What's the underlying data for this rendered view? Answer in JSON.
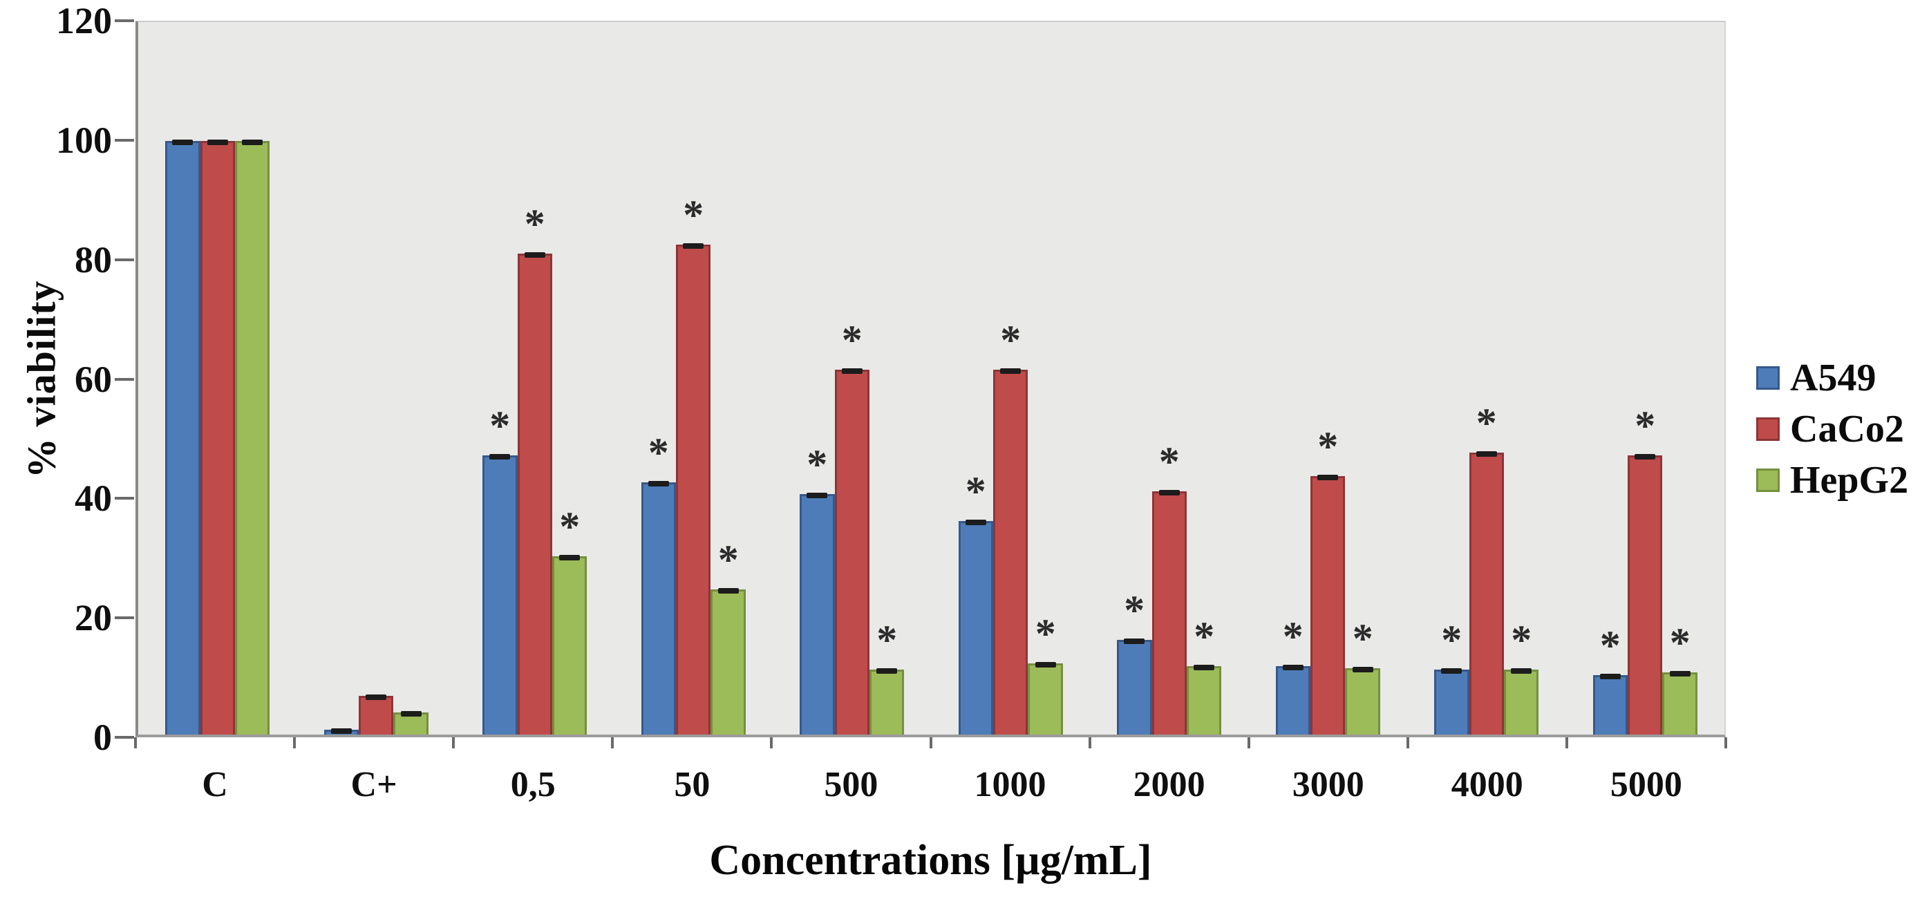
{
  "chart_data": {
    "type": "bar",
    "title": "",
    "xlabel": "Concentrations [µg/mL]",
    "ylabel": "% viability",
    "categories": [
      "C",
      "C+",
      "0,5",
      "50",
      "500",
      "1000",
      "2000",
      "3000",
      "4000",
      "5000"
    ],
    "series": [
      {
        "name": "A549",
        "color": "#4E7CB8",
        "border_color": "#36598C",
        "values": [
          100,
          0.8,
          47,
          42.5,
          40.5,
          36,
          16,
          11.5,
          11,
          10
        ],
        "significant": [
          false,
          false,
          true,
          true,
          true,
          true,
          true,
          true,
          true,
          true
        ]
      },
      {
        "name": "CaCo2",
        "color": "#C04B4B",
        "border_color": "#8E3537",
        "values": [
          100,
          6.5,
          81,
          82.5,
          61.5,
          61.5,
          41,
          43.5,
          47.5,
          47
        ],
        "significant": [
          false,
          false,
          true,
          true,
          true,
          true,
          true,
          true,
          true,
          true
        ]
      },
      {
        "name": "HepG2",
        "color": "#9CBB59",
        "border_color": "#75903F",
        "values": [
          100,
          3.7,
          30,
          24.5,
          11,
          12,
          11.5,
          11.2,
          11,
          10.5
        ],
        "significant": [
          false,
          false,
          true,
          true,
          true,
          true,
          true,
          true,
          true,
          true
        ]
      }
    ],
    "ylim": [
      0,
      120
    ],
    "y_ticks": [
      0,
      20,
      40,
      60,
      80,
      100,
      120
    ],
    "grid": false,
    "legend_position": "right",
    "error_bars": true,
    "significance_marker": "*",
    "plot_background": "#E9E9E8"
  }
}
